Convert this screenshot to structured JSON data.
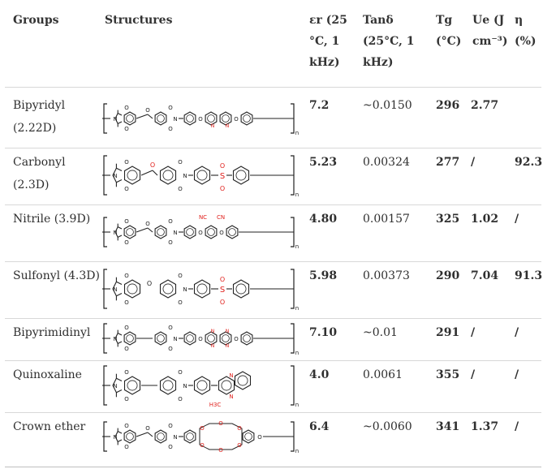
{
  "headers": {
    "groups": "Groups",
    "structures": "Structures",
    "er": [
      "εr (25",
      "°C, 1",
      "kHz)"
    ],
    "tan": [
      "Tanδ",
      "(25°C, 1",
      "kHz)"
    ],
    "tg": [
      "Tg",
      "(°C)"
    ],
    "ue": [
      "Ue (J",
      "cm⁻³)"
    ],
    "eta": [
      "η",
      "(%)"
    ]
  },
  "rows": [
    {
      "group": [
        "Bipyridyl",
        "(2.22D)"
      ],
      "er": "7.2",
      "tan": "~0.0150",
      "tg": "296",
      "ue": "2.77",
      "eta": ""
    },
    {
      "group": [
        "Carbonyl",
        "(2.3D)"
      ],
      "er": "5.23",
      "tan": "0.00324",
      "tg": "277",
      "ue": "/",
      "eta": "92.3"
    },
    {
      "group": [
        "Nitrile (3.9D)"
      ],
      "er": "4.80",
      "tan": "0.00157",
      "tg": "325",
      "ue": "1.02",
      "eta": "/"
    },
    {
      "group": [
        "Sulfonyl (4.3D)"
      ],
      "er": "5.98",
      "tan": "0.00373",
      "tg": "290",
      "ue": "7.04",
      "eta": "91.3"
    },
    {
      "group": [
        "Bipyrimidinyl"
      ],
      "er": "7.10",
      "tan": "~0.01",
      "tg": "291",
      "ue": "/",
      "eta": "/"
    },
    {
      "group": [
        "Quinoxaline"
      ],
      "er": "4.0",
      "tan": "0.0061",
      "tg": "355",
      "ue": "/",
      "eta": "/"
    },
    {
      "group": [
        "Crown ether"
      ],
      "er": "6.4",
      "tan": "~0.0060",
      "tg": "341",
      "ue": "1.37",
      "eta": "/"
    }
  ],
  "structure_labels": {
    "o": "O",
    "n": "N",
    "cn": "CN",
    "nc": "NC",
    "s": "S",
    "h3c": "H3C",
    "sub_n": "n"
  }
}
